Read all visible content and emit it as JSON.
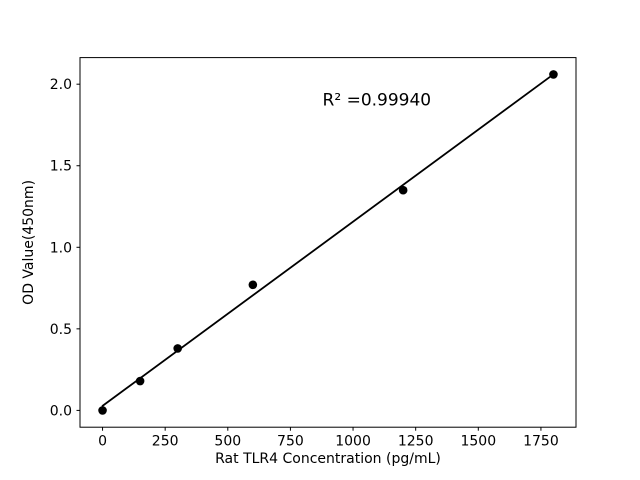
{
  "figure": {
    "background": "#ffffff",
    "foreground": "#000000"
  },
  "chart_data": {
    "type": "scatter",
    "title": "",
    "xlabel": "Rat TLR4 Concentration (pg/mL)",
    "ylabel": "OD Value(450nm)",
    "x": [
      0,
      150,
      300,
      600,
      1200,
      1800
    ],
    "y": [
      0.0,
      0.18,
      0.38,
      0.77,
      1.35,
      2.06
    ],
    "fit_line": {
      "x": [
        0,
        1800
      ],
      "y": [
        0.0277,
        2.0604
      ]
    },
    "annotation": {
      "text": "R² =0.99940",
      "x": 1095,
      "y": 1.9
    },
    "xlim": [
      -90,
      1890
    ],
    "ylim": [
      -0.103,
      2.163
    ],
    "xticks": {
      "values": [
        0,
        250,
        500,
        750,
        1000,
        1250,
        1500,
        1750
      ],
      "labels": [
        "0",
        "250",
        "500",
        "750",
        "1000",
        "1250",
        "1500",
        "1750"
      ]
    },
    "yticks": {
      "values": [
        0,
        0.5,
        1.0,
        1.5,
        2.0
      ],
      "labels": [
        "0.0",
        "0.5",
        "1.0",
        "1.5",
        "2.0"
      ]
    },
    "grid": false,
    "legend_position": "none",
    "marker_color": "#000000",
    "line_color": "#000000",
    "spine_color": "#000000"
  }
}
